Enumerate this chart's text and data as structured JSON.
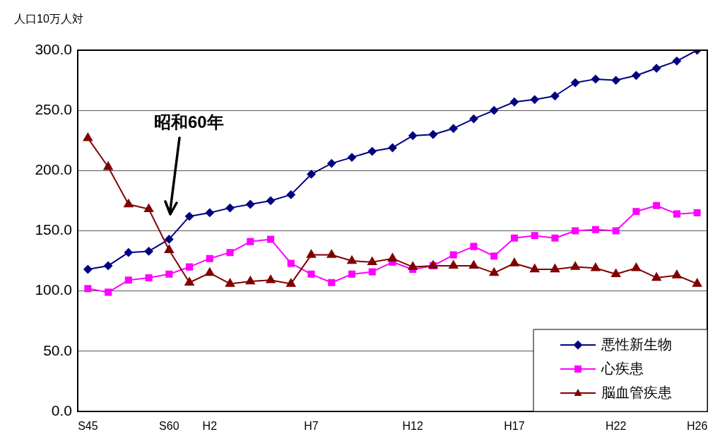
{
  "chart_data": {
    "type": "line",
    "ylabel": "人口10万人対",
    "categories": [
      "S45",
      null,
      null,
      null,
      "S60",
      null,
      "H2",
      null,
      null,
      null,
      null,
      "H7",
      null,
      null,
      null,
      null,
      "H12",
      null,
      null,
      null,
      null,
      "H17",
      null,
      null,
      null,
      null,
      "H22",
      null,
      null,
      null,
      "H26"
    ],
    "series": [
      {
        "name": "悪性新生物",
        "color": "#000080",
        "marker": "diamond",
        "values": [
          118,
          121,
          132,
          133,
          143,
          162,
          165,
          169,
          172,
          175,
          180,
          197,
          206,
          211,
          216,
          219,
          229,
          230,
          235,
          243,
          250,
          257,
          259,
          262,
          273,
          276,
          275,
          279,
          285,
          291,
          300
        ]
      },
      {
        "name": "心疾患",
        "color": "#ff00ff",
        "marker": "square",
        "values": [
          102,
          99,
          109,
          111,
          114,
          120,
          127,
          132,
          141,
          143,
          123,
          114,
          107,
          114,
          116,
          124,
          118,
          121,
          130,
          137,
          129,
          144,
          146,
          144,
          150,
          151,
          150,
          166,
          171,
          164,
          165
        ]
      },
      {
        "name": "脳血管疾患",
        "color": "#800000",
        "marker": "triangle",
        "values": [
          227,
          203,
          172,
          168,
          134,
          107,
          115,
          106,
          108,
          109,
          106,
          130,
          130,
          125,
          124,
          127,
          120,
          121,
          121,
          121,
          115,
          123,
          118,
          118,
          120,
          119,
          114,
          119,
          111,
          113,
          106
        ]
      }
    ],
    "ylim": [
      0,
      300
    ],
    "yticks": [
      {
        "value": 0,
        "label": "0.0"
      },
      {
        "value": 50,
        "label": "50.0"
      },
      {
        "value": 100,
        "label": "100.0"
      },
      {
        "value": 150,
        "label": "150.0"
      },
      {
        "value": 200,
        "label": "200.0"
      },
      {
        "value": 250,
        "label": "250.0"
      },
      {
        "value": 300,
        "label": "300.0"
      }
    ],
    "grid": "y",
    "legend": "bottom right",
    "line_style": "solid",
    "annotations": [
      "昭和60年"
    ]
  }
}
